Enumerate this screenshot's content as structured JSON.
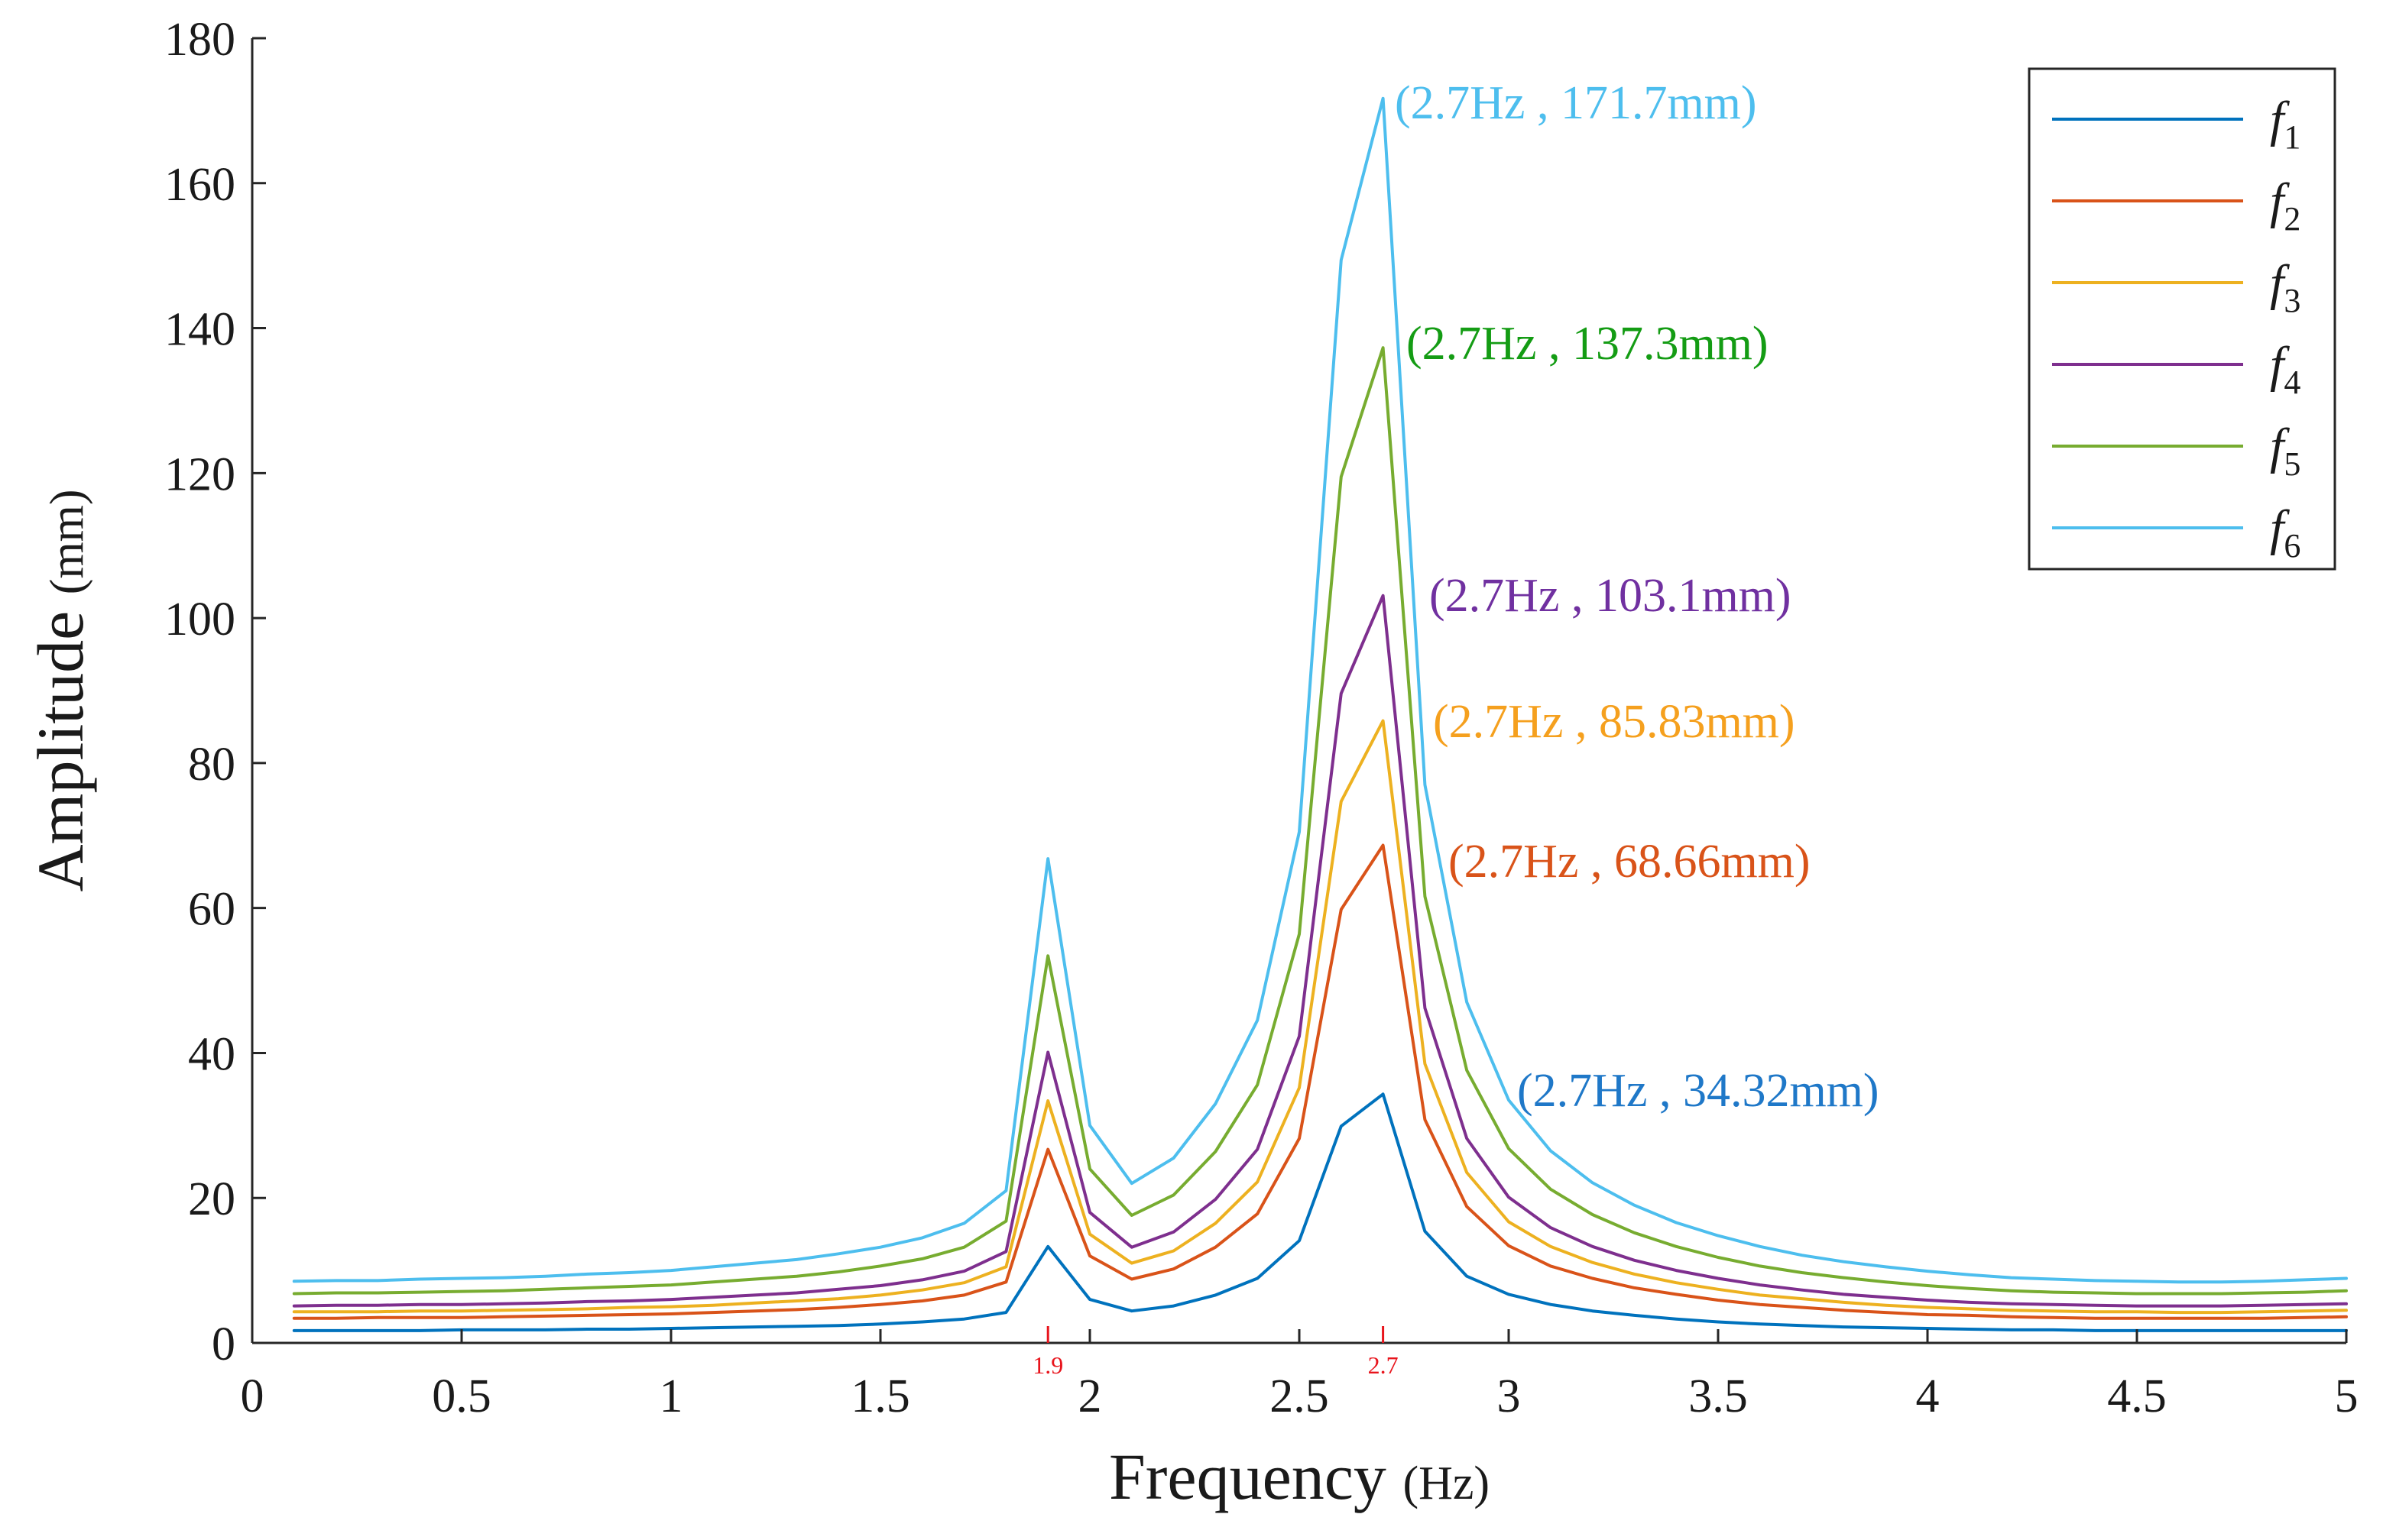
{
  "chart_data": {
    "type": "line",
    "title": "",
    "xlabel": "Frequency",
    "xlabel_unit": "(Hz)",
    "ylabel": "Amplitude",
    "ylabel_unit": "(mm)",
    "xlim": [
      0,
      5
    ],
    "ylim": [
      0,
      180
    ],
    "xticks": [
      0,
      0.5,
      1,
      1.5,
      2,
      2.5,
      3,
      3.5,
      4,
      4.5,
      5
    ],
    "xtick_labels": [
      "0",
      "0.5",
      "1",
      "1.5",
      "2",
      "2.5",
      "3",
      "3.5",
      "4",
      "4.5",
      "5"
    ],
    "yticks": [
      0,
      20,
      40,
      60,
      80,
      100,
      120,
      140,
      160,
      180
    ],
    "ytick_labels": [
      "0",
      "20",
      "40",
      "60",
      "80",
      "100",
      "120",
      "140",
      "160",
      "180"
    ],
    "grid": false,
    "legend_position": "top-right",
    "x": [
      0.1,
      0.2,
      0.3,
      0.4,
      0.5,
      0.6,
      0.7,
      0.8,
      0.9,
      1.0,
      1.1,
      1.2,
      1.3,
      1.4,
      1.5,
      1.6,
      1.7,
      1.8,
      1.9,
      2.0,
      2.1,
      2.2,
      2.3,
      2.4,
      2.5,
      2.6,
      2.7,
      2.8,
      2.9,
      3.0,
      3.1,
      3.2,
      3.3,
      3.4,
      3.5,
      3.6,
      3.7,
      3.8,
      3.9,
      4.0,
      4.1,
      4.2,
      4.3,
      4.4,
      4.5,
      4.6,
      4.7,
      4.8,
      4.9,
      5.0
    ],
    "series": [
      {
        "name": "f",
        "subscript": "1",
        "color": "#0072bd",
        "values": [
          1.7,
          1.7,
          1.7,
          1.7,
          1.8,
          1.8,
          1.8,
          1.9,
          1.9,
          2.0,
          2.1,
          2.2,
          2.3,
          2.4,
          2.6,
          2.9,
          3.3,
          4.2,
          13.3,
          6.0,
          4.4,
          5.1,
          6.6,
          8.9,
          14.1,
          29.9,
          34.32,
          15.4,
          9.2,
          6.7,
          5.3,
          4.4,
          3.8,
          3.3,
          2.9,
          2.6,
          2.4,
          2.2,
          2.1,
          2.0,
          1.9,
          1.8,
          1.8,
          1.7,
          1.7,
          1.7,
          1.7,
          1.7,
          1.7,
          1.7
        ]
      },
      {
        "name": "f",
        "subscript": "2",
        "color": "#d95319",
        "values": [
          3.4,
          3.4,
          3.5,
          3.5,
          3.5,
          3.6,
          3.7,
          3.8,
          3.9,
          4.0,
          4.2,
          4.4,
          4.6,
          4.9,
          5.3,
          5.8,
          6.6,
          8.4,
          26.7,
          12.0,
          8.8,
          10.2,
          13.2,
          17.8,
          28.2,
          59.8,
          68.66,
          30.8,
          18.8,
          13.4,
          10.6,
          8.9,
          7.6,
          6.7,
          5.9,
          5.3,
          4.9,
          4.5,
          4.2,
          3.9,
          3.8,
          3.6,
          3.5,
          3.4,
          3.4,
          3.4,
          3.4,
          3.4,
          3.5,
          3.6
        ]
      },
      {
        "name": "f",
        "subscript": "3",
        "color": "#edb120",
        "values": [
          4.3,
          4.3,
          4.3,
          4.4,
          4.4,
          4.5,
          4.6,
          4.7,
          4.9,
          5.0,
          5.2,
          5.5,
          5.8,
          6.1,
          6.6,
          7.3,
          8.3,
          10.5,
          33.4,
          15.0,
          11.0,
          12.7,
          16.5,
          22.2,
          35.2,
          74.7,
          85.83,
          38.5,
          23.5,
          16.7,
          13.3,
          11.1,
          9.5,
          8.3,
          7.4,
          6.6,
          6.1,
          5.6,
          5.2,
          4.9,
          4.7,
          4.5,
          4.4,
          4.3,
          4.3,
          4.2,
          4.2,
          4.3,
          4.4,
          4.5
        ]
      },
      {
        "name": "f",
        "subscript": "4",
        "color": "#7e2f8e",
        "values": [
          5.1,
          5.2,
          5.2,
          5.3,
          5.3,
          5.4,
          5.5,
          5.7,
          5.8,
          6.0,
          6.3,
          6.6,
          6.9,
          7.4,
          7.9,
          8.7,
          9.9,
          12.6,
          40.1,
          18.0,
          13.2,
          15.3,
          19.8,
          26.7,
          42.3,
          89.6,
          103.1,
          46.2,
          28.2,
          20.1,
          15.9,
          13.3,
          11.4,
          10.0,
          8.9,
          8.0,
          7.3,
          6.7,
          6.3,
          5.9,
          5.6,
          5.4,
          5.3,
          5.2,
          5.1,
          5.1,
          5.1,
          5.2,
          5.3,
          5.4
        ]
      },
      {
        "name": "f",
        "subscript": "5",
        "color": "#77ac30",
        "values": [
          6.8,
          6.9,
          6.9,
          7.0,
          7.1,
          7.2,
          7.4,
          7.6,
          7.8,
          8.0,
          8.4,
          8.8,
          9.2,
          9.8,
          10.6,
          11.6,
          13.2,
          16.8,
          53.4,
          24.0,
          17.6,
          20.4,
          26.4,
          35.6,
          56.4,
          119.5,
          137.3,
          61.6,
          37.6,
          26.8,
          21.2,
          17.7,
          15.2,
          13.3,
          11.8,
          10.6,
          9.7,
          9.0,
          8.4,
          7.9,
          7.5,
          7.2,
          7.0,
          6.9,
          6.8,
          6.8,
          6.8,
          6.9,
          7.0,
          7.2
        ]
      },
      {
        "name": "f",
        "subscript": "6",
        "color": "#4dbeee",
        "values": [
          8.5,
          8.6,
          8.6,
          8.8,
          8.9,
          9.0,
          9.2,
          9.5,
          9.7,
          10.0,
          10.5,
          11.0,
          11.5,
          12.3,
          13.2,
          14.5,
          16.5,
          21.0,
          66.8,
          30.0,
          22.0,
          25.5,
          33.0,
          44.5,
          70.5,
          149.4,
          171.7,
          77.0,
          47.0,
          33.5,
          26.5,
          22.1,
          19.0,
          16.6,
          14.8,
          13.3,
          12.1,
          11.2,
          10.5,
          9.9,
          9.4,
          9.0,
          8.8,
          8.6,
          8.5,
          8.4,
          8.4,
          8.5,
          8.7,
          8.9
        ]
      }
    ],
    "annotations": [
      {
        "text": "(2.7Hz , 171.7mm)",
        "x": 2.7,
        "y": 171.7,
        "color": "#4dbeee"
      },
      {
        "text": "(2.7Hz , 137.3mm)",
        "x": 2.7,
        "y": 137.3,
        "color": "#149c14"
      },
      {
        "text": "(2.7Hz , 103.1mm)",
        "x": 2.7,
        "y": 103.1,
        "color": "#7030a0"
      },
      {
        "text": "(2.7Hz , 85.83mm)",
        "x": 2.7,
        "y": 85.83,
        "color": "#f5a01e"
      },
      {
        "text": "(2.7Hz , 68.66mm)",
        "x": 2.7,
        "y": 68.66,
        "color": "#d95319"
      },
      {
        "text": "(2.7Hz , 34.32mm)",
        "x": 2.7,
        "y": 34.32,
        "color": "#1f78c8"
      }
    ],
    "x_markers": [
      {
        "x": 1.9,
        "label": "1.9",
        "color": "#e8141c"
      },
      {
        "x": 2.7,
        "label": "2.7",
        "color": "#e8141c"
      }
    ]
  }
}
